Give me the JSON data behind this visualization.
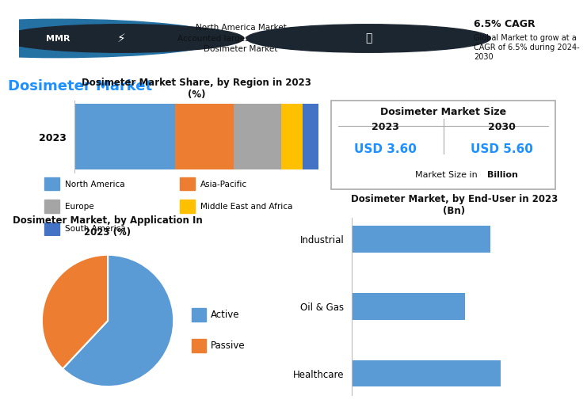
{
  "title": "Dosimeter Market",
  "title_color": "#1E90FF",
  "bg_color": "#FFFFFF",
  "header_left_text": "North America Market\nAccounted largest share in the\nDosimeter Market",
  "header_right_bold": "6.5% CAGR",
  "header_right_text": "Global Market to grow at a\nCAGR of 6.5% during 2024-\n2030",
  "bar_chart_title": "Dosimeter Market Share, by Region in 2023\n(%)",
  "bar_year": "2023",
  "bar_segments": [
    "North America",
    "Asia-Pacific",
    "Europe",
    "Middle East and Africa",
    "South America"
  ],
  "bar_values": [
    38,
    22,
    18,
    8,
    6
  ],
  "bar_legend_colors": [
    "#5B9BD5",
    "#ED7D31",
    "#A5A5A5",
    "#FFC000",
    "#4472C4"
  ],
  "pie_chart_title": "Dosimeter Market, by Application In\n2023 (%)",
  "pie_labels": [
    "Active",
    "Passive"
  ],
  "pie_values": [
    62,
    38
  ],
  "pie_colors": [
    "#5B9BD5",
    "#ED7D31"
  ],
  "market_size_title": "Dosimeter Market Size",
  "market_size_2023_label": "2023",
  "market_size_2030_label": "2030",
  "market_size_2023_value": "USD 3.60",
  "market_size_2030_value": "USD 5.60",
  "market_size_color": "#1E90FF",
  "enduser_chart_title": "Dosimeter Market, by End-User in 2023\n(Bn)",
  "enduser_categories": [
    "Industrial",
    "Oil & Gas",
    "Healthcare"
  ],
  "enduser_values": [
    1.35,
    1.1,
    1.45
  ],
  "enduser_color": "#5B9BD5"
}
